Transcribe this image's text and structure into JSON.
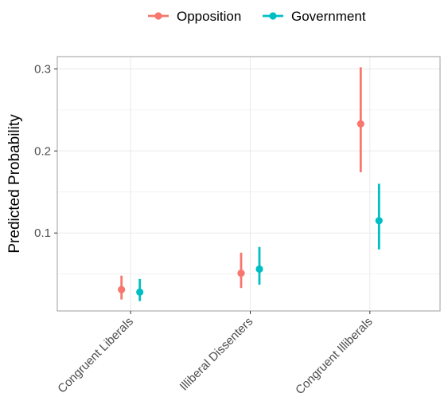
{
  "chart_data": {
    "type": "scatter",
    "subtype": "point-range",
    "categories": [
      "Congruent Liberals",
      "Illiberal Dissenters",
      "Congruent Illiberals"
    ],
    "series": [
      {
        "name": "Opposition",
        "color": "#F8766D",
        "values": [
          0.031,
          0.051,
          0.233
        ],
        "lower": [
          0.019,
          0.033,
          0.174
        ],
        "upper": [
          0.048,
          0.076,
          0.302
        ]
      },
      {
        "name": "Government",
        "color": "#00BFC4",
        "values": [
          0.028,
          0.056,
          0.115
        ],
        "lower": [
          0.017,
          0.037,
          0.08
        ],
        "upper": [
          0.044,
          0.083,
          0.16
        ]
      }
    ],
    "ylabel": "Predicted Probability",
    "xlabel": "",
    "yticks": [
      0.1,
      0.2,
      0.3
    ],
    "ytick_labels": [
      "0.1",
      "0.2",
      "0.3"
    ],
    "ylim": [
      0.005,
      0.315
    ],
    "grid": true,
    "legend_position": "top"
  }
}
